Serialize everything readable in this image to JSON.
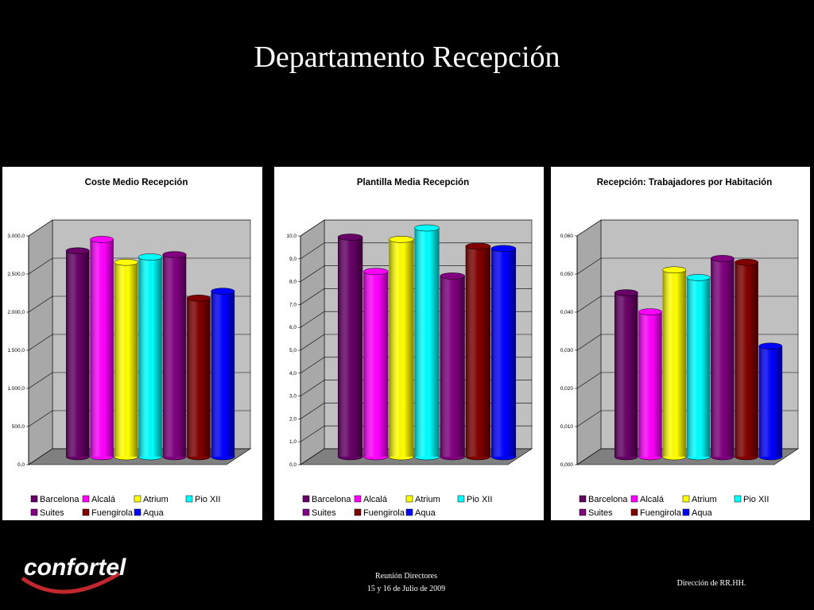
{
  "title": "Departamento Recepción",
  "logo": "confortel",
  "footer": {
    "meeting": "Reunión Directores",
    "dates": "15 y 16 de Julio de 2009",
    "department": "Dirección de RR.HH."
  },
  "chart_data": [
    {
      "type": "bar",
      "title": "Coste Medio Recepción",
      "grid": true,
      "legend": "bottom",
      "ylim": [
        0,
        3000
      ],
      "yticks": [
        {
          "value": 0,
          "label": "0,0"
        },
        {
          "value": 500,
          "label": "500,0"
        },
        {
          "value": 1000,
          "label": "1.000,0"
        },
        {
          "value": 1500,
          "label": "1.500,0"
        },
        {
          "value": 2000,
          "label": "2.000,0"
        },
        {
          "value": 2500,
          "label": "2.500,0"
        },
        {
          "value": 3000,
          "label": "3.000,0"
        }
      ],
      "series": [
        {
          "name": "Barcelona",
          "color": "#660066",
          "values": [
            2700
          ]
        },
        {
          "name": "Alcalá",
          "color": "#ff00ff",
          "values": [
            2850
          ]
        },
        {
          "name": "Atrium",
          "color": "#ffff00",
          "values": [
            2550
          ]
        },
        {
          "name": "Pio XII",
          "color": "#00ffff",
          "values": [
            2620
          ]
        },
        {
          "name": "Suites",
          "color": "#800080",
          "values": [
            2650
          ]
        },
        {
          "name": "Fuengirola",
          "color": "#800000",
          "values": [
            2080
          ]
        },
        {
          "name": "Aqua",
          "color": "#0000ff",
          "values": [
            2170
          ]
        }
      ]
    },
    {
      "type": "bar",
      "title": "Plantilla Media Recepción",
      "grid": true,
      "legend": "bottom",
      "ylim": [
        0,
        10
      ],
      "yticks": [
        {
          "value": 0,
          "label": "0,0"
        },
        {
          "value": 1,
          "label": "1,0"
        },
        {
          "value": 2,
          "label": "2,0"
        },
        {
          "value": 3,
          "label": "3,0"
        },
        {
          "value": 4,
          "label": "4,0"
        },
        {
          "value": 5,
          "label": "5,0"
        },
        {
          "value": 6,
          "label": "6,0"
        },
        {
          "value": 7,
          "label": "7,0"
        },
        {
          "value": 8,
          "label": "8,0"
        },
        {
          "value": 9,
          "label": "9,0"
        },
        {
          "value": 10,
          "label": "10,0"
        }
      ],
      "series": [
        {
          "name": "Barcelona",
          "color": "#660066",
          "values": [
            9.6
          ]
        },
        {
          "name": "Alcalá",
          "color": "#ff00ff",
          "values": [
            8.1
          ]
        },
        {
          "name": "Atrium",
          "color": "#ffff00",
          "values": [
            9.5
          ]
        },
        {
          "name": "Pio XII",
          "color": "#00ffff",
          "values": [
            10.0
          ]
        },
        {
          "name": "Suites",
          "color": "#800080",
          "values": [
            7.9
          ]
        },
        {
          "name": "Fuengirola",
          "color": "#800000",
          "values": [
            9.2
          ]
        },
        {
          "name": "Aqua",
          "color": "#0000ff",
          "values": [
            9.1
          ]
        }
      ]
    },
    {
      "type": "bar",
      "title": "Recepción: Trabajadores por Habitación",
      "grid": true,
      "legend": "bottom",
      "ylim": [
        0,
        0.06
      ],
      "yticks": [
        {
          "value": 0,
          "label": "0,000"
        },
        {
          "value": 0.01,
          "label": "0,010"
        },
        {
          "value": 0.02,
          "label": "0,020"
        },
        {
          "value": 0.03,
          "label": "0,030"
        },
        {
          "value": 0.04,
          "label": "0,040"
        },
        {
          "value": 0.05,
          "label": "0,050"
        },
        {
          "value": 0.06,
          "label": "0,060"
        }
      ],
      "series": [
        {
          "name": "Barcelona",
          "color": "#660066",
          "values": [
            0.043
          ]
        },
        {
          "name": "Alcalá",
          "color": "#ff00ff",
          "values": [
            0.038
          ]
        },
        {
          "name": "Atrium",
          "color": "#ffff00",
          "values": [
            0.049
          ]
        },
        {
          "name": "Pio XII",
          "color": "#00ffff",
          "values": [
            0.047
          ]
        },
        {
          "name": "Suites",
          "color": "#800080",
          "values": [
            0.052
          ]
        },
        {
          "name": "Fuengirola",
          "color": "#800000",
          "values": [
            0.051
          ]
        },
        {
          "name": "Aqua",
          "color": "#0000ff",
          "values": [
            0.029
          ]
        }
      ]
    }
  ]
}
